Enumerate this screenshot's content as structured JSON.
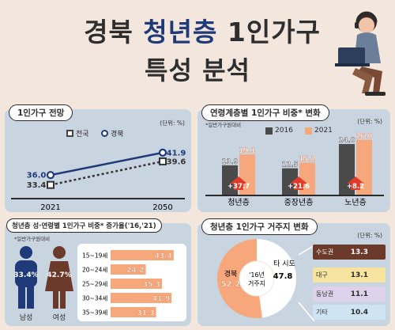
{
  "title": {
    "line1_pre": "경북 ",
    "line1_blue": "청년층",
    "line1_post": " 1인가구",
    "line2": "특성 분석"
  },
  "colors": {
    "panel": "#c9d4e1",
    "orange": "#f6a77c",
    "navy": "#1f3a78",
    "dark": "#4a4a4a",
    "brown": "#6b3a2a"
  },
  "panels": {
    "p1": {
      "title": "1인가구 전망",
      "unit": "(단위: %)"
    },
    "p2": {
      "title": "연령계층별 1인가구 비중* 변화",
      "unit": "(단위: %)",
      "note": "*일반가구원대비"
    },
    "p3": {
      "title": "청년층 성·연령별 1인가구 비중* 증가율('16,'21)",
      "note": "*일반가구원대비"
    },
    "p4": {
      "title": "청년층 1인가구 거주지 변화",
      "unit": "(단위: %)"
    }
  },
  "chart_data": [
    {
      "type": "line",
      "x": [
        "2021",
        "2050"
      ],
      "series": [
        {
          "name": "전국",
          "values": [
            33.4,
            39.6
          ]
        },
        {
          "name": "경북",
          "values": [
            36.0,
            41.9
          ]
        }
      ],
      "ylim": [
        30,
        45
      ]
    },
    {
      "type": "bar",
      "categories": [
        "청년층",
        "중장년층",
        "노년층"
      ],
      "series": [
        {
          "name": "2016",
          "values": [
            13.9,
            12.5,
            24.0
          ]
        },
        {
          "name": "2021",
          "values": [
            19.1,
            15.2,
            26.0
          ]
        }
      ],
      "annotations": [
        "+37.7",
        "+21.6",
        "+8.2"
      ],
      "ylim": [
        0,
        30
      ]
    },
    {
      "type": "bar",
      "orientation": "horizontal",
      "categories": [
        "15~19세",
        "20~24세",
        "25~29세",
        "30~34세",
        "35~39세"
      ],
      "values": [
        43.4,
        24.2,
        35.3,
        41.9,
        31.3
      ],
      "xlim": [
        0,
        50
      ],
      "gender": {
        "male_label": "남성",
        "male_value": "33.4%",
        "female_label": "여성",
        "female_value": "42.7%"
      }
    },
    {
      "type": "pie",
      "center_label": "'16년 거주지",
      "slices": [
        {
          "name": "경북",
          "value": 52.2
        },
        {
          "name": "타 시도",
          "value": 47.8
        }
      ],
      "breakdown": [
        {
          "name": "수도권",
          "value": 13.3
        },
        {
          "name": "대구",
          "value": 13.1
        },
        {
          "name": "동남권",
          "value": 11.1
        },
        {
          "name": "기타",
          "value": 10.4
        }
      ]
    }
  ]
}
